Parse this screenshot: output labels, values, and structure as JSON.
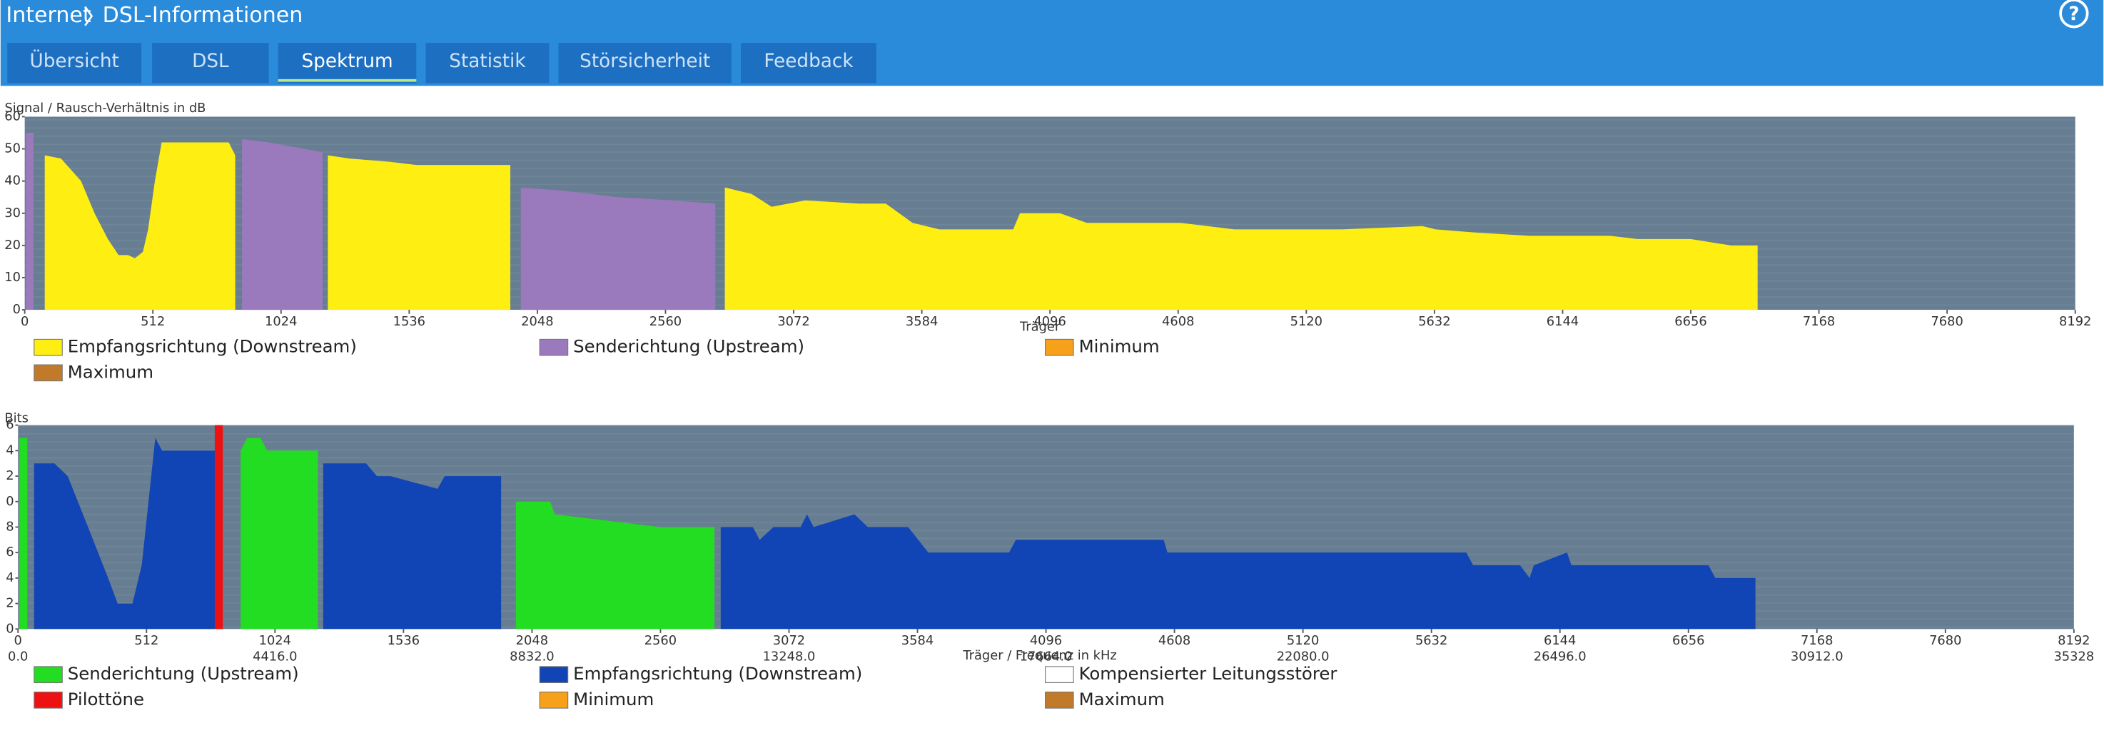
{
  "header": {
    "section": "Internet",
    "title": "DSL-Informationen",
    "help": "?"
  },
  "tabs": [
    {
      "label": "Übersicht"
    },
    {
      "label": "DSL"
    },
    {
      "label": "Spektrum",
      "active": true
    },
    {
      "label": "Statistik"
    },
    {
      "label": "Störsicherheit"
    },
    {
      "label": "Feedback"
    }
  ],
  "chart_data": [
    {
      "type": "area",
      "y_label": "Signal / Rausch-Verhältnis in dB",
      "x_label": "Träger",
      "xlim": [
        0,
        8192
      ],
      "ylim": [
        0,
        60
      ],
      "xticks": [
        0,
        512,
        1024,
        1536,
        2048,
        2560,
        3072,
        3584,
        4096,
        4608,
        5120,
        5632,
        6144,
        6656,
        7168,
        7680,
        8192
      ],
      "yticks": [
        0,
        10,
        20,
        30,
        40,
        50,
        60
      ],
      "series": [
        {
          "name": "Empfangsrichtung (Downstream)",
          "color": "#ffee11",
          "x": [
            80,
            145,
            225,
            279,
            332,
            375,
            413,
            440,
            472,
            493,
            520,
            547,
            815,
            841,
            900,
            1211,
            1297,
            1457,
            1565,
            1940,
            2400,
            2797,
            2904,
            2984,
            3118,
            3333,
            3440,
            3547,
            3654,
            3949,
            3976,
            4136,
            4243,
            4618,
            4833,
            5262,
            5584,
            5637,
            5798,
            6012,
            6334,
            6441,
            6655,
            6816,
            6923
          ],
          "values": [
            48,
            47,
            40,
            30,
            22,
            17,
            17,
            16,
            18,
            25,
            40,
            52,
            52,
            48,
            null,
            48,
            47,
            46,
            45,
            45,
            null,
            38,
            36,
            32,
            34,
            33,
            33,
            27,
            25,
            25,
            30,
            30,
            27,
            27,
            25,
            25,
            26,
            25,
            24,
            23,
            23,
            22,
            22,
            20,
            20
          ]
        },
        {
          "name": "Senderichtung (Upstream)",
          "color": "#9b79bd",
          "x": [
            5,
            35,
            400,
            868,
            975,
            1190,
            1500,
            1982,
            2154,
            2368,
            2583,
            2759
          ],
          "values": [
            55,
            55,
            null,
            53,
            52,
            49,
            null,
            38,
            37,
            35,
            34,
            33
          ]
        },
        {
          "name": "Minimum",
          "color": "#f7a11a",
          "x": [],
          "values": []
        },
        {
          "name": "Maximum",
          "color": "#c07a2a",
          "x": [],
          "values": []
        }
      ]
    },
    {
      "type": "area",
      "y_label": "Bits",
      "x_label": "Träger / Frequenz in kHz",
      "xlim": [
        0,
        8192
      ],
      "ylim": [
        0,
        16
      ],
      "xticks": [
        0,
        512,
        1024,
        1536,
        2048,
        2560,
        3072,
        3584,
        4096,
        4608,
        5120,
        5632,
        6144,
        6656,
        7168,
        7680,
        8192
      ],
      "x2ticks": [
        {
          "value": 0,
          "label": "0.0"
        },
        {
          "value": 1024,
          "label": "4416.0"
        },
        {
          "value": 2048,
          "label": "8832.0"
        },
        {
          "value": 3072,
          "label": "13248.0"
        },
        {
          "value": 4096,
          "label": "17664.0"
        },
        {
          "value": 5120,
          "label": "22080.0"
        },
        {
          "value": 6144,
          "label": "26496.0"
        },
        {
          "value": 7168,
          "label": "30912.0"
        },
        35328
      ],
      "yticks": [
        0,
        2,
        4,
        6,
        8,
        {
          "value": 10,
          "label": "0"
        },
        {
          "value": 12,
          "label": "2"
        },
        {
          "value": 14,
          "label": "4"
        },
        {
          "value": 16,
          "label": "6"
        }
      ],
      "series": [
        {
          "name": "Senderichtung (Upstream)",
          "color": "#22dd22",
          "x": [
            5,
            37,
            400,
            887,
            913,
            966,
            993,
            1195,
            1600,
            1984,
            2120,
            2139,
            2557,
            2775
          ],
          "values": [
            15,
            15,
            null,
            14,
            15,
            15,
            14,
            14,
            null,
            10,
            10,
            9,
            8,
            8
          ]
        },
        {
          "name": "Empfangsrichtung (Downstream)",
          "color": "#1144b4",
          "x": [
            64,
            145,
            198,
            279,
            359,
            397,
            456,
            493,
            547,
            574,
            799,
            1000,
            1216,
            1387,
            1430,
            1484,
            1672,
            1700,
            1925,
            2400,
            2800,
            2928,
            2955,
            3010,
            3118,
            3144,
            3170,
            3333,
            3386,
            3547,
            3627,
            3949,
            3976,
            4565,
            4580,
            5771,
            5798,
            5985,
            6023,
            6040,
            6172,
            6190,
            6736,
            6763,
            6923
          ],
          "values": [
            13,
            13,
            12,
            8,
            4,
            2,
            2,
            5,
            15,
            14,
            14,
            null,
            13,
            13,
            12,
            12,
            11,
            12,
            12,
            null,
            8,
            8,
            7,
            8,
            8,
            9,
            8,
            9,
            8,
            8,
            6,
            6,
            7,
            7,
            6,
            6,
            5,
            5,
            4,
            5,
            6,
            5,
            5,
            4,
            4
          ]
        },
        {
          "name": "Kompensierter Leitungsstörer",
          "color": "#ffffff",
          "x": [],
          "values": []
        },
        {
          "name": "Pilottöne",
          "color": "#ee1111",
          "style": "bar",
          "x": [
            800
          ],
          "values": [
            16
          ]
        },
        {
          "name": "Minimum",
          "color": "#f7a11a",
          "x": [],
          "values": []
        },
        {
          "name": "Maximum",
          "color": "#c07a2a",
          "x": [],
          "values": []
        }
      ]
    }
  ]
}
